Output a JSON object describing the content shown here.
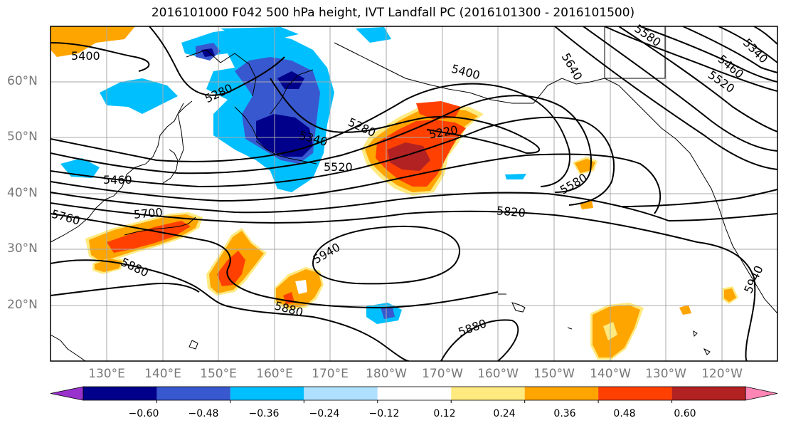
{
  "title": "2016101000 F042 500 hPa height, IVT Landfall PC (2016101300 - 2016101500)",
  "axes": {
    "lat_ticks": [
      "60°N",
      "50°N",
      "40°N",
      "30°N",
      "20°N"
    ],
    "lon_ticks": [
      "130°E",
      "140°E",
      "150°E",
      "160°E",
      "170°E",
      "180°W",
      "170°W",
      "160°W",
      "150°W",
      "140°W",
      "130°W",
      "120°W"
    ],
    "lat_range": [
      10,
      70
    ],
    "lon_range_east": [
      120,
      250
    ]
  },
  "contour_labels": [
    "5400",
    "5280",
    "5340",
    "5460",
    "5520",
    "5700",
    "5760",
    "5880",
    "5940",
    "5820",
    "5580",
    "5640",
    "5220",
    "5400",
    "5520",
    "5460",
    "5340",
    "5580",
    "5280",
    "5880",
    "5940"
  ],
  "colorbar": {
    "ticks": [
      "−0.60",
      "−0.48",
      "−0.36",
      "−0.24",
      "−0.12",
      "0.12",
      "0.24",
      "0.36",
      "0.48",
      "0.60"
    ],
    "colors": [
      "#9932cc",
      "#00008b",
      "#3858cf",
      "#00bfff",
      "#b0e0ff",
      "#ffffff",
      "#ffea80",
      "#ffa500",
      "#ff4000",
      "#b22222",
      "#ff85b5"
    ]
  }
}
